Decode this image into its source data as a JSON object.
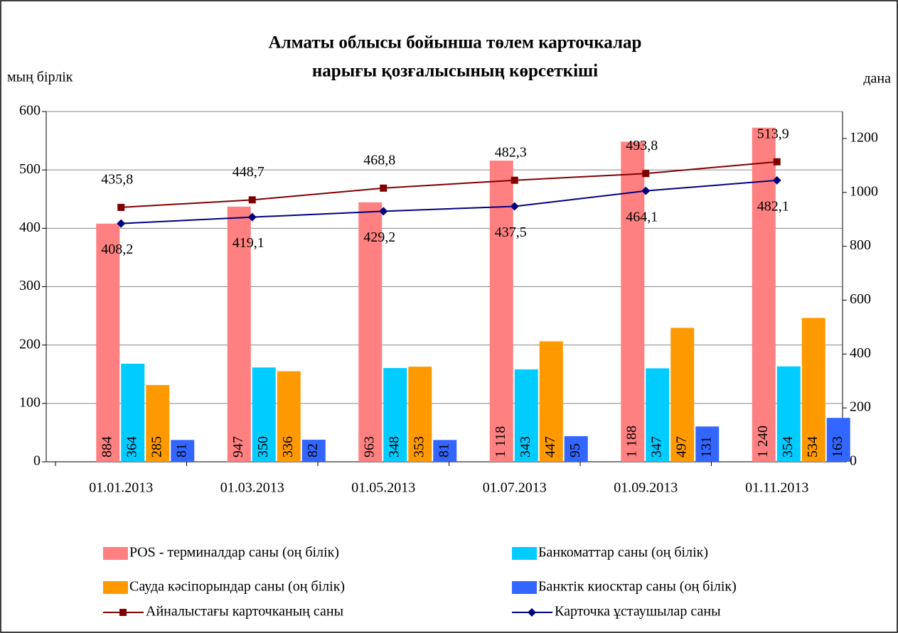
{
  "chart_data": {
    "type": "bar-line",
    "title": [
      "Алматы облысы бойынша төлем карточкалар",
      "нарығы қозғалысының көрсеткіші"
    ],
    "y_label": "мың бірлік",
    "y2_label": "дана",
    "categories": [
      "01.01.2013",
      "01.03.2013",
      "01.05.2013",
      "01.07.2013",
      "01.09.2013",
      "01.11.2013"
    ],
    "ylim": [
      0,
      600
    ],
    "yticks": [
      0,
      100,
      200,
      300,
      400,
      500,
      600
    ],
    "y2lim": [
      0,
      1300
    ],
    "y2ticks": [
      0,
      200,
      400,
      600,
      800,
      1000,
      1200
    ],
    "grid": true,
    "series": [
      {
        "name": "POS - терминалдар саны (оң білік)",
        "kind": "bar",
        "axis": "y2",
        "color": "#ff8080",
        "values": [
          884,
          947,
          963,
          1118,
          1188,
          1240
        ],
        "value_labels": [
          "884",
          "947",
          "963",
          "1 118",
          "1 188",
          "1 240"
        ]
      },
      {
        "name": "Банкоматтар саны (оң білік)",
        "kind": "bar",
        "axis": "y2",
        "color": "#00ccff",
        "values": [
          364,
          350,
          348,
          343,
          347,
          354
        ]
      },
      {
        "name": "Сауда кәсіпорындар саны (оң білік)",
        "kind": "bar",
        "axis": "y2",
        "color": "#ff9900",
        "values": [
          285,
          336,
          353,
          447,
          497,
          534
        ]
      },
      {
        "name": "Банктік киосктар саны (оң білік)",
        "kind": "bar",
        "axis": "y2",
        "color": "#3366ff",
        "values": [
          81,
          82,
          81,
          95,
          131,
          163
        ]
      },
      {
        "name": "Айналыстағы карточканың саны",
        "kind": "line",
        "marker": "square",
        "color": "#800000",
        "values": [
          435.8,
          448.7,
          468.8,
          482.3,
          493.8,
          513.9
        ],
        "value_labels": [
          "435,8",
          "448,7",
          "468,8",
          "482,3",
          "493,8",
          "513,9"
        ]
      },
      {
        "name": "Карточка ұстаушылар саны",
        "kind": "line",
        "marker": "diamond",
        "color": "#000080",
        "values": [
          408.2,
          419.1,
          429.2,
          437.5,
          464.1,
          482.1
        ],
        "value_labels": [
          "408,2",
          "419,1",
          "429,2",
          "437,5",
          "464,1",
          "482,1"
        ]
      }
    ]
  }
}
